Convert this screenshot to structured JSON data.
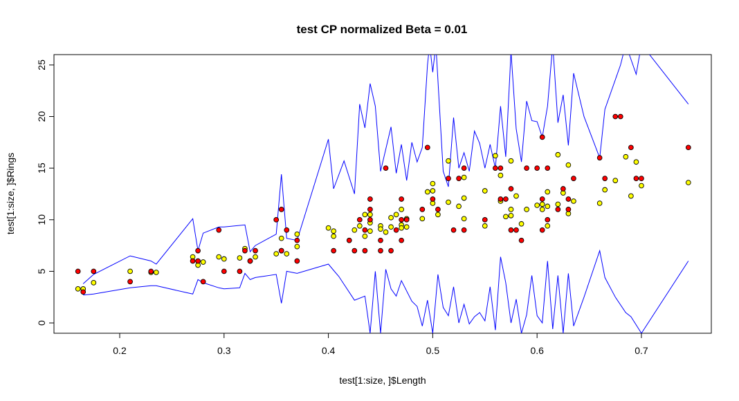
{
  "chart_data": {
    "type": "scatter",
    "title": "test CP normalized Beta = 0.01",
    "xlabel": "test[1:size, ]$Length",
    "ylabel": "test[1:size, ]$Rings",
    "xlim": [
      0.137,
      0.767
    ],
    "ylim": [
      -1.0,
      26.0
    ],
    "x_ticks": [
      0.2,
      0.3,
      0.4,
      0.5,
      0.6,
      0.7
    ],
    "y_ticks": [
      0,
      5,
      10,
      15,
      20,
      25
    ],
    "grid": false,
    "legend": "none",
    "colors": {
      "observed": "#ff0000",
      "predicted": "#ffff00",
      "marker_edge": "#000000",
      "interval": "#0000ff"
    },
    "observed": [
      [
        0.16,
        5
      ],
      [
        0.165,
        3
      ],
      [
        0.175,
        5
      ],
      [
        0.21,
        4
      ],
      [
        0.23,
        5
      ],
      [
        0.27,
        6
      ],
      [
        0.275,
        7
      ],
      [
        0.275,
        6
      ],
      [
        0.28,
        4
      ],
      [
        0.295,
        9
      ],
      [
        0.3,
        5
      ],
      [
        0.315,
        5
      ],
      [
        0.32,
        7
      ],
      [
        0.325,
        6
      ],
      [
        0.33,
        7
      ],
      [
        0.35,
        10
      ],
      [
        0.355,
        11
      ],
      [
        0.355,
        7
      ],
      [
        0.36,
        9
      ],
      [
        0.37,
        8
      ],
      [
        0.37,
        6
      ],
      [
        0.405,
        7
      ],
      [
        0.42,
        8
      ],
      [
        0.425,
        7
      ],
      [
        0.43,
        10
      ],
      [
        0.435,
        9
      ],
      [
        0.435,
        7
      ],
      [
        0.44,
        12
      ],
      [
        0.44,
        11
      ],
      [
        0.44,
        10
      ],
      [
        0.45,
        8
      ],
      [
        0.45,
        7
      ],
      [
        0.455,
        15
      ],
      [
        0.46,
        7
      ],
      [
        0.465,
        9
      ],
      [
        0.47,
        12
      ],
      [
        0.47,
        10
      ],
      [
        0.47,
        8
      ],
      [
        0.475,
        10
      ],
      [
        0.49,
        11
      ],
      [
        0.495,
        17
      ],
      [
        0.5,
        12
      ],
      [
        0.505,
        11
      ],
      [
        0.515,
        14
      ],
      [
        0.52,
        9
      ],
      [
        0.525,
        14
      ],
      [
        0.53,
        15
      ],
      [
        0.53,
        9
      ],
      [
        0.55,
        10
      ],
      [
        0.56,
        15
      ],
      [
        0.565,
        15
      ],
      [
        0.565,
        12
      ],
      [
        0.57,
        12
      ],
      [
        0.575,
        13
      ],
      [
        0.575,
        9
      ],
      [
        0.58,
        9
      ],
      [
        0.585,
        8
      ],
      [
        0.59,
        15
      ],
      [
        0.6,
        15
      ],
      [
        0.605,
        18
      ],
      [
        0.605,
        12
      ],
      [
        0.605,
        9
      ],
      [
        0.61,
        15
      ],
      [
        0.61,
        10
      ],
      [
        0.62,
        11
      ],
      [
        0.625,
        13
      ],
      [
        0.63,
        12
      ],
      [
        0.63,
        11
      ],
      [
        0.635,
        14
      ],
      [
        0.66,
        16
      ],
      [
        0.665,
        14
      ],
      [
        0.675,
        20
      ],
      [
        0.68,
        20
      ],
      [
        0.69,
        17
      ],
      [
        0.695,
        14
      ],
      [
        0.7,
        14
      ],
      [
        0.745,
        17
      ]
    ],
    "predicted": [
      [
        0.16,
        3.3
      ],
      [
        0.165,
        3.3
      ],
      [
        0.175,
        3.9
      ],
      [
        0.21,
        5.0
      ],
      [
        0.23,
        4.9
      ],
      [
        0.235,
        4.9
      ],
      [
        0.27,
        6.4
      ],
      [
        0.275,
        5.6
      ],
      [
        0.28,
        5.9
      ],
      [
        0.295,
        6.4
      ],
      [
        0.3,
        6.2
      ],
      [
        0.315,
        6.3
      ],
      [
        0.32,
        7.2
      ],
      [
        0.325,
        6.0
      ],
      [
        0.33,
        6.4
      ],
      [
        0.35,
        6.7
      ],
      [
        0.355,
        7.0
      ],
      [
        0.355,
        8.2
      ],
      [
        0.36,
        6.7
      ],
      [
        0.37,
        8.6
      ],
      [
        0.37,
        7.4
      ],
      [
        0.4,
        9.2
      ],
      [
        0.405,
        8.9
      ],
      [
        0.405,
        8.4
      ],
      [
        0.42,
        8.0
      ],
      [
        0.425,
        9.0
      ],
      [
        0.43,
        9.4
      ],
      [
        0.435,
        10.5
      ],
      [
        0.435,
        8.4
      ],
      [
        0.44,
        9.7
      ],
      [
        0.44,
        10.5
      ],
      [
        0.44,
        8.9
      ],
      [
        0.45,
        9.4
      ],
      [
        0.45,
        9.1
      ],
      [
        0.455,
        8.8
      ],
      [
        0.46,
        10.2
      ],
      [
        0.46,
        9.3
      ],
      [
        0.465,
        10.5
      ],
      [
        0.47,
        9.5
      ],
      [
        0.47,
        9.2
      ],
      [
        0.47,
        11.0
      ],
      [
        0.475,
        10.1
      ],
      [
        0.475,
        9.3
      ],
      [
        0.49,
        10.1
      ],
      [
        0.495,
        12.7
      ],
      [
        0.5,
        13.5
      ],
      [
        0.5,
        12.8
      ],
      [
        0.5,
        11.6
      ],
      [
        0.505,
        10.5
      ],
      [
        0.515,
        11.7
      ],
      [
        0.515,
        15.7
      ],
      [
        0.525,
        11.3
      ],
      [
        0.53,
        12.1
      ],
      [
        0.53,
        10.1
      ],
      [
        0.53,
        14.1
      ],
      [
        0.55,
        12.8
      ],
      [
        0.55,
        9.4
      ],
      [
        0.56,
        16.2
      ],
      [
        0.565,
        14.3
      ],
      [
        0.565,
        11.8
      ],
      [
        0.57,
        10.3
      ],
      [
        0.575,
        15.7
      ],
      [
        0.575,
        11.0
      ],
      [
        0.575,
        10.4
      ],
      [
        0.58,
        12.3
      ],
      [
        0.585,
        9.6
      ],
      [
        0.59,
        11.0
      ],
      [
        0.6,
        11.4
      ],
      [
        0.605,
        11.5
      ],
      [
        0.605,
        11.0
      ],
      [
        0.61,
        12.7
      ],
      [
        0.61,
        11.3
      ],
      [
        0.61,
        9.4
      ],
      [
        0.62,
        16.3
      ],
      [
        0.62,
        11.5
      ],
      [
        0.625,
        12.6
      ],
      [
        0.63,
        15.3
      ],
      [
        0.63,
        10.6
      ],
      [
        0.635,
        11.8
      ],
      [
        0.66,
        11.6
      ],
      [
        0.665,
        12.9
      ],
      [
        0.675,
        13.8
      ],
      [
        0.685,
        16.1
      ],
      [
        0.69,
        12.3
      ],
      [
        0.695,
        15.6
      ],
      [
        0.7,
        13.3
      ],
      [
        0.745,
        13.6
      ]
    ],
    "upper_bound": [
      [
        0.165,
        3.8
      ],
      [
        0.175,
        4.7
      ],
      [
        0.21,
        6.5
      ],
      [
        0.23,
        6.0
      ],
      [
        0.235,
        5.7
      ],
      [
        0.27,
        10.1
      ],
      [
        0.275,
        7.0
      ],
      [
        0.28,
        8.7
      ],
      [
        0.295,
        9.3
      ],
      [
        0.3,
        9.3
      ],
      [
        0.32,
        9.5
      ],
      [
        0.325,
        6.9
      ],
      [
        0.33,
        7.5
      ],
      [
        0.35,
        8.6
      ],
      [
        0.355,
        14.4
      ],
      [
        0.36,
        8.2
      ],
      [
        0.37,
        8.0
      ],
      [
        0.4,
        17.8
      ],
      [
        0.405,
        13.0
      ],
      [
        0.415,
        15.7
      ],
      [
        0.425,
        12.5
      ],
      [
        0.43,
        21.2
      ],
      [
        0.435,
        18.9
      ],
      [
        0.44,
        23.2
      ],
      [
        0.445,
        21.0
      ],
      [
        0.45,
        14.7
      ],
      [
        0.46,
        19.0
      ],
      [
        0.465,
        14.5
      ],
      [
        0.47,
        17.3
      ],
      [
        0.475,
        13.8
      ],
      [
        0.48,
        17.5
      ],
      [
        0.485,
        15.6
      ],
      [
        0.49,
        17.0
      ],
      [
        0.495,
        25.0
      ],
      [
        0.497,
        27.0
      ],
      [
        0.5,
        24.3
      ],
      [
        0.503,
        27.0
      ],
      [
        0.51,
        14.7
      ],
      [
        0.515,
        13.2
      ],
      [
        0.52,
        19.9
      ],
      [
        0.525,
        15.0
      ],
      [
        0.53,
        16.5
      ],
      [
        0.535,
        14.7
      ],
      [
        0.54,
        18.6
      ],
      [
        0.545,
        17.4
      ],
      [
        0.55,
        15.0
      ],
      [
        0.555,
        17.3
      ],
      [
        0.56,
        15.0
      ],
      [
        0.565,
        21.0
      ],
      [
        0.57,
        16.1
      ],
      [
        0.575,
        26.3
      ],
      [
        0.58,
        18.8
      ],
      [
        0.585,
        15.6
      ],
      [
        0.59,
        21.5
      ],
      [
        0.595,
        19.6
      ],
      [
        0.6,
        19.5
      ],
      [
        0.605,
        18.0
      ],
      [
        0.61,
        21.0
      ],
      [
        0.615,
        27.0
      ],
      [
        0.62,
        19.4
      ],
      [
        0.625,
        22.1
      ],
      [
        0.63,
        17.2
      ],
      [
        0.635,
        24.2
      ],
      [
        0.645,
        20.0
      ],
      [
        0.66,
        16.0
      ],
      [
        0.665,
        20.7
      ],
      [
        0.68,
        25.0
      ],
      [
        0.685,
        27.0
      ],
      [
        0.695,
        24.1
      ],
      [
        0.7,
        27.0
      ],
      [
        0.745,
        21.2
      ]
    ],
    "lower_bound": [
      [
        0.165,
        2.7
      ],
      [
        0.175,
        2.8
      ],
      [
        0.21,
        3.4
      ],
      [
        0.23,
        3.6
      ],
      [
        0.235,
        3.6
      ],
      [
        0.27,
        2.8
      ],
      [
        0.275,
        4.2
      ],
      [
        0.28,
        3.9
      ],
      [
        0.295,
        3.4
      ],
      [
        0.3,
        3.3
      ],
      [
        0.315,
        3.4
      ],
      [
        0.32,
        4.8
      ],
      [
        0.325,
        4.2
      ],
      [
        0.33,
        4.4
      ],
      [
        0.35,
        4.7
      ],
      [
        0.355,
        1.9
      ],
      [
        0.36,
        5.0
      ],
      [
        0.37,
        4.8
      ],
      [
        0.4,
        5.7
      ],
      [
        0.405,
        5.1
      ],
      [
        0.41,
        4.5
      ],
      [
        0.425,
        2.2
      ],
      [
        0.435,
        2.6
      ],
      [
        0.44,
        -1.0
      ],
      [
        0.445,
        5.0
      ],
      [
        0.45,
        -1.0
      ],
      [
        0.455,
        5.2
      ],
      [
        0.46,
        3.3
      ],
      [
        0.465,
        2.6
      ],
      [
        0.47,
        4.1
      ],
      [
        0.48,
        2.1
      ],
      [
        0.485,
        1.6
      ],
      [
        0.49,
        -0.3
      ],
      [
        0.495,
        2.2
      ],
      [
        0.5,
        -1.0
      ],
      [
        0.505,
        4.7
      ],
      [
        0.51,
        1.5
      ],
      [
        0.515,
        0.7
      ],
      [
        0.52,
        3.5
      ],
      [
        0.525,
        0.0
      ],
      [
        0.53,
        1.8
      ],
      [
        0.535,
        -0.1
      ],
      [
        0.54,
        0.6
      ],
      [
        0.545,
        1.0
      ],
      [
        0.55,
        0.2
      ],
      [
        0.555,
        3.5
      ],
      [
        0.56,
        -0.7
      ],
      [
        0.565,
        6.4
      ],
      [
        0.57,
        3.9
      ],
      [
        0.575,
        0.0
      ],
      [
        0.58,
        2.3
      ],
      [
        0.585,
        -1.0
      ],
      [
        0.59,
        0.8
      ],
      [
        0.595,
        4.6
      ],
      [
        0.6,
        0.7
      ],
      [
        0.605,
        0.0
      ],
      [
        0.61,
        6.0
      ],
      [
        0.615,
        -0.6
      ],
      [
        0.62,
        4.6
      ],
      [
        0.625,
        -1.0
      ],
      [
        0.63,
        4.8
      ],
      [
        0.635,
        -0.3
      ],
      [
        0.645,
        2.5
      ],
      [
        0.66,
        7.0
      ],
      [
        0.665,
        4.4
      ],
      [
        0.675,
        2.5
      ],
      [
        0.685,
        1.0
      ],
      [
        0.69,
        0.6
      ],
      [
        0.7,
        -1.0
      ],
      [
        0.745,
        6.0
      ]
    ]
  }
}
